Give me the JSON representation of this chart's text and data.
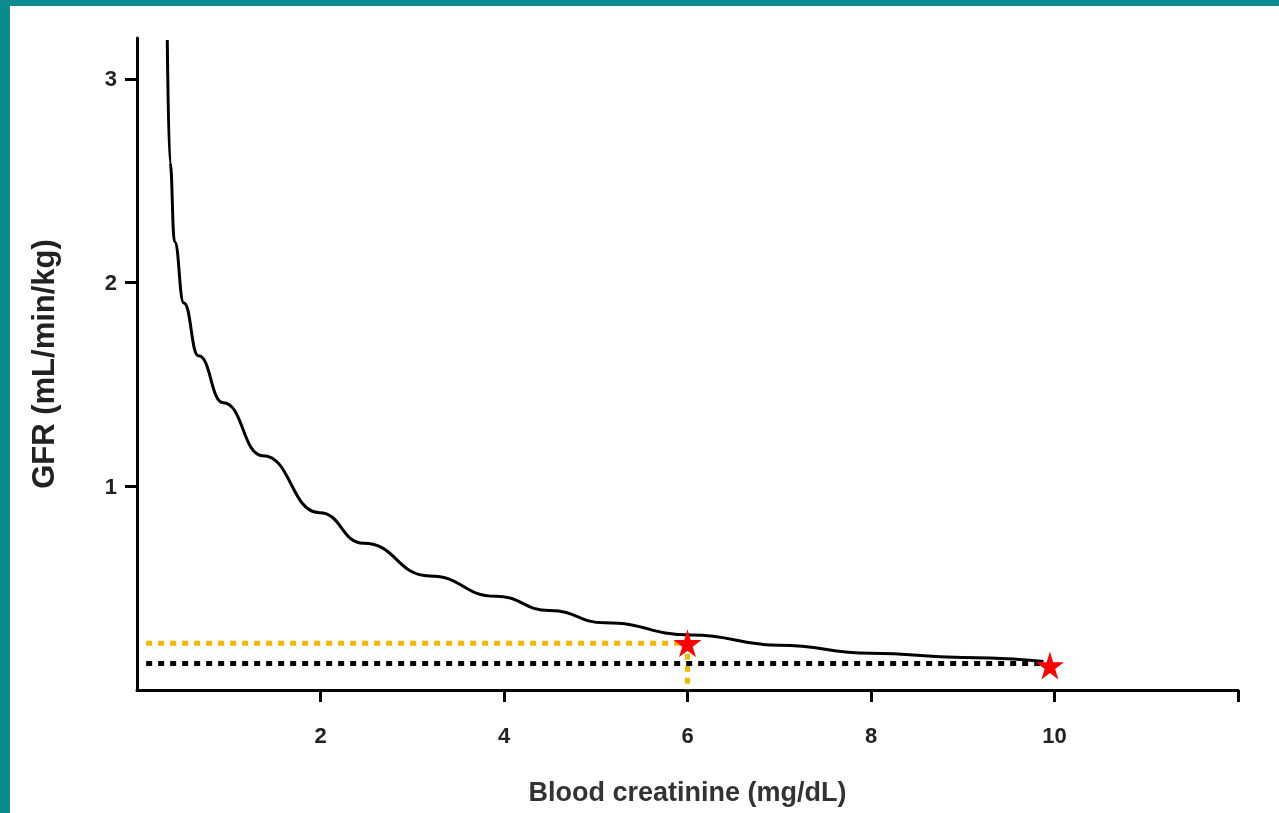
{
  "chart_data": {
    "type": "line",
    "xlabel": "Blood creatinine (mg/dL)",
    "ylabel": "GFR (mL/min/kg)",
    "xlim": [
      0,
      12
    ],
    "ylim": [
      0,
      3.2
    ],
    "xticks": [
      2,
      4,
      6,
      8,
      10,
      {
        "value": 12,
        "label": null
      }
    ],
    "yticks": [
      1,
      2,
      3
    ],
    "series": [
      {
        "type": "line",
        "color": "#000000",
        "marker": "none",
        "line_style": "solid",
        "x": [
          0.33,
          0.36,
          0.41,
          0.51,
          0.67,
          0.94,
          1.37,
          1.99,
          2.47,
          3.19,
          3.91,
          4.5,
          5.1,
          6.04,
          7.0,
          8.0,
          9.0,
          9.88
        ],
        "values": [
          3.19,
          2.59,
          2.2,
          1.9,
          1.64,
          1.41,
          1.15,
          0.87,
          0.72,
          0.56,
          0.46,
          0.39,
          0.33,
          0.27,
          0.22,
          0.18,
          0.16,
          0.14
        ]
      },
      {
        "type": "line",
        "color": "#f5b800",
        "marker": "none",
        "line_style": "dotted",
        "x": [
          0.1,
          6,
          6
        ],
        "values": [
          0.23,
          0.23,
          0
        ]
      },
      {
        "type": "line",
        "color": "#000000",
        "marker": "none",
        "line_style": "dotted",
        "x": [
          0.1,
          9.9
        ],
        "values": [
          0.13,
          0.13
        ]
      },
      {
        "type": "scatter",
        "color": "#ff0000",
        "marker": "star",
        "x": [
          6.0,
          9.95
        ],
        "values": [
          0.23,
          0.12
        ]
      }
    ]
  }
}
